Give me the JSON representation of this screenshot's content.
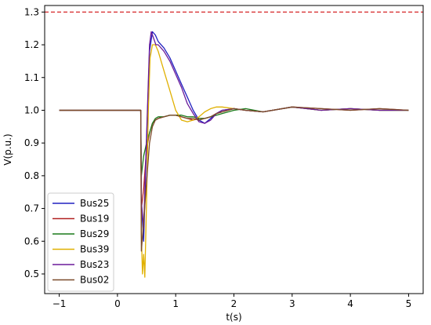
{
  "chart_data": {
    "type": "line",
    "xlabel": "t(s)",
    "ylabel": "V(p.u.)",
    "xlim": [
      -1.25,
      5.25
    ],
    "ylim": [
      0.44,
      1.32
    ],
    "xticks": [
      -1,
      0,
      1,
      2,
      3,
      4,
      5
    ],
    "yticks": [
      0.5,
      0.6,
      0.7,
      0.8,
      0.9,
      1.0,
      1.1,
      1.2,
      1.3
    ],
    "xtick_labels": [
      "−1",
      "0",
      "1",
      "2",
      "3",
      "4",
      "5"
    ],
    "ytick_labels": [
      "0.5",
      "0.6",
      "0.7",
      "0.8",
      "0.9",
      "1.0",
      "1.1",
      "1.2",
      "1.3"
    ],
    "grid": false,
    "legend_position": "lower-left",
    "reference_lines": [
      {
        "y": 1.3,
        "color": "#d62728",
        "style": "dashed"
      }
    ],
    "series": [
      {
        "name": "Bus25",
        "color": "#2020c0",
        "x": [
          -1,
          0.4,
          0.41,
          0.45,
          0.5,
          0.55,
          0.6,
          0.65,
          0.7,
          0.8,
          0.9,
          1.0,
          1.1,
          1.2,
          1.3,
          1.4,
          1.5,
          1.6,
          1.7,
          1.8,
          2.0,
          2.2,
          2.5,
          3.0,
          3.5,
          4.0,
          4.5,
          5.0
        ],
        "y": [
          1.0,
          1.0,
          0.72,
          0.6,
          0.9,
          1.18,
          1.24,
          1.23,
          1.21,
          1.19,
          1.16,
          1.12,
          1.08,
          1.04,
          1.0,
          0.97,
          0.96,
          0.975,
          0.99,
          1.0,
          1.005,
          1.0,
          0.995,
          1.01,
          1.0,
          1.005,
          1.0,
          1.0
        ]
      },
      {
        "name": "Bus19",
        "color": "#b22222",
        "x": [
          -1,
          0.4,
          0.41,
          0.45,
          0.5,
          0.55,
          0.6,
          0.65,
          0.7,
          0.8,
          0.9,
          1.0,
          1.1,
          1.2,
          1.3,
          1.4,
          1.5,
          1.6,
          1.7,
          1.8,
          2.0,
          2.2,
          2.5,
          3.0,
          3.5,
          4.0,
          4.5,
          5.0
        ],
        "y": [
          1.0,
          1.0,
          0.7,
          0.76,
          0.88,
          0.93,
          0.96,
          0.97,
          0.975,
          0.98,
          0.985,
          0.985,
          0.98,
          0.975,
          0.97,
          0.975,
          0.975,
          0.98,
          0.99,
          0.995,
          1.005,
          1.0,
          0.995,
          1.01,
          1.005,
          1.0,
          1.005,
          1.0
        ]
      },
      {
        "name": "Bus29",
        "color": "#1a7a1a",
        "x": [
          -1,
          0.4,
          0.41,
          0.45,
          0.5,
          0.55,
          0.6,
          0.65,
          0.7,
          0.8,
          0.9,
          1.0,
          1.1,
          1.2,
          1.3,
          1.4,
          1.5,
          1.6,
          1.7,
          1.8,
          2.0,
          2.2,
          2.5,
          3.0,
          3.5,
          4.0,
          4.5,
          5.0
        ],
        "y": [
          1.0,
          1.0,
          0.8,
          0.86,
          0.9,
          0.93,
          0.96,
          0.975,
          0.98,
          0.98,
          0.985,
          0.985,
          0.985,
          0.98,
          0.98,
          0.975,
          0.975,
          0.98,
          0.985,
          0.99,
          1.0,
          1.005,
          0.995,
          1.01,
          1.0,
          1.005,
          1.0,
          1.0
        ]
      },
      {
        "name": "Bus39",
        "color": "#e0b000",
        "x": [
          -1,
          0.4,
          0.41,
          0.43,
          0.45,
          0.47,
          0.5,
          0.53,
          0.56,
          0.6,
          0.65,
          0.7,
          0.8,
          0.9,
          1.0,
          1.1,
          1.2,
          1.3,
          1.4,
          1.5,
          1.6,
          1.7,
          1.8,
          2.0,
          2.2,
          2.5,
          3.0,
          3.5,
          4.0,
          4.5,
          5.0
        ],
        "y": [
          1.0,
          1.0,
          0.62,
          0.5,
          0.56,
          0.49,
          0.72,
          1.0,
          1.16,
          1.2,
          1.2,
          1.18,
          1.12,
          1.06,
          1.0,
          0.97,
          0.965,
          0.97,
          0.98,
          0.995,
          1.005,
          1.01,
          1.01,
          1.005,
          1.0,
          0.995,
          1.01,
          1.0,
          1.005,
          1.0,
          1.0
        ]
      },
      {
        "name": "Bus23",
        "color": "#6a1a9a",
        "x": [
          -1,
          0.4,
          0.41,
          0.45,
          0.5,
          0.55,
          0.58,
          0.62,
          0.66,
          0.7,
          0.8,
          0.9,
          1.0,
          1.1,
          1.2,
          1.3,
          1.4,
          1.5,
          1.6,
          1.7,
          1.8,
          2.0,
          2.2,
          2.5,
          3.0,
          3.5,
          4.0,
          4.5,
          5.0
        ],
        "y": [
          1.0,
          1.0,
          0.72,
          0.64,
          0.92,
          1.2,
          1.24,
          1.22,
          1.2,
          1.2,
          1.18,
          1.15,
          1.11,
          1.07,
          1.02,
          0.99,
          0.965,
          0.96,
          0.97,
          0.99,
          1.0,
          1.005,
          1.0,
          0.995,
          1.01,
          1.0,
          1.005,
          1.0,
          1.0
        ]
      },
      {
        "name": "Bus02",
        "color": "#7b4a2a",
        "x": [
          -1,
          0.4,
          0.41,
          0.45,
          0.5,
          0.55,
          0.6,
          0.65,
          0.7,
          0.8,
          0.9,
          1.0,
          1.1,
          1.2,
          1.3,
          1.4,
          1.5,
          1.6,
          1.7,
          1.8,
          2.0,
          2.2,
          2.5,
          3.0,
          3.5,
          4.0,
          4.5,
          5.0
        ],
        "y": [
          1.0,
          1.0,
          0.57,
          0.66,
          0.78,
          0.9,
          0.95,
          0.97,
          0.975,
          0.98,
          0.985,
          0.985,
          0.98,
          0.975,
          0.975,
          0.97,
          0.975,
          0.98,
          0.99,
          0.995,
          1.005,
          1.0,
          0.995,
          1.01,
          1.005,
          1.0,
          1.005,
          1.0
        ]
      }
    ]
  }
}
